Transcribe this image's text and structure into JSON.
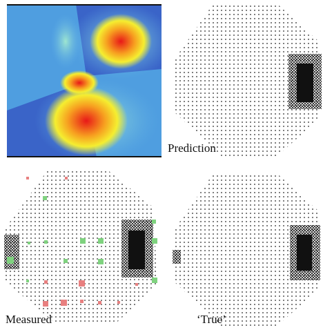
{
  "panels": [
    {
      "label": "Prediction"
    },
    {
      "label": "Measured"
    },
    {
      "label": "‘True’"
    }
  ]
}
